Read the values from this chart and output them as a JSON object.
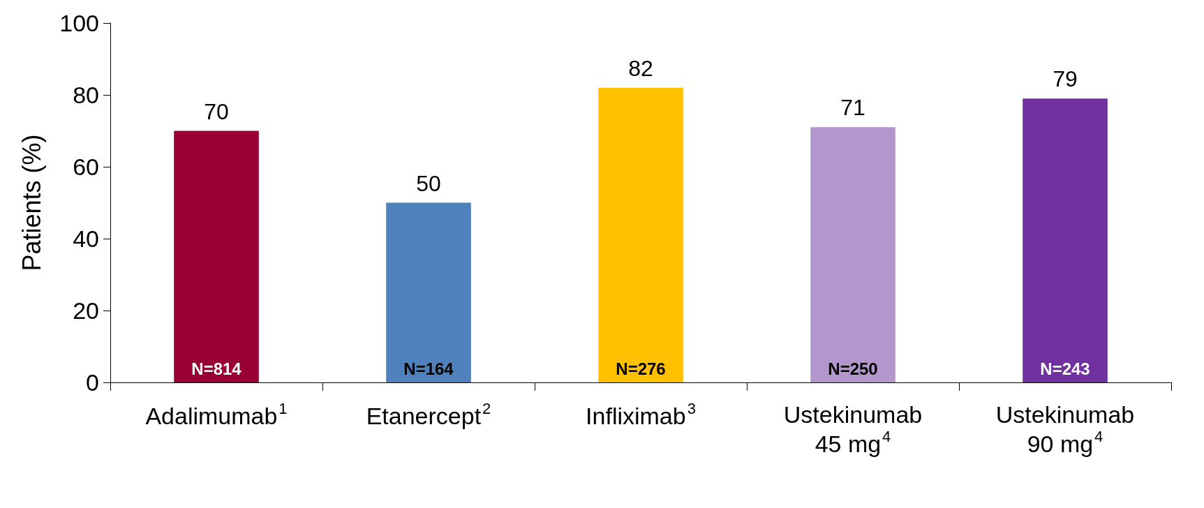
{
  "chart_data": {
    "type": "bar",
    "ylabel": "Patients (%)",
    "categories": [
      "Adalimumab$^{1}$",
      "Etanercept$^{2}$",
      "Infliximab$^{3}$",
      "Ustekinumab\n45 mg$^{4}$",
      "Ustekinumab\n90 mg$^{4}$"
    ],
    "values": [
      70,
      50,
      82,
      71,
      79
    ],
    "colors": [
      "#990033",
      "#4f81bd",
      "#ffc000",
      "#b397cc",
      "#7030a0"
    ],
    "ylim": [
      0,
      100
    ],
    "yticks": [
      0,
      20,
      40,
      60,
      80,
      100
    ],
    "grid": false,
    "data_labels": true,
    "annotations": [
      {
        "text": "N=814",
        "x": "Adalimumab$^{1}$",
        "y": 0
      },
      {
        "text": "N=164",
        "x": "Etanercept$^{2}$",
        "y": 0
      },
      {
        "text": "N=276",
        "x": "Infliximab$^{3}$",
        "y": 0
      },
      {
        "text": "N=250",
        "x": "Ustekinumab\n45 mg$^{4}$",
        "y": 0
      },
      {
        "text": "N=243",
        "x": "Ustekinumab\n90 mg$^{4}$",
        "y": 0
      }
    ]
  }
}
